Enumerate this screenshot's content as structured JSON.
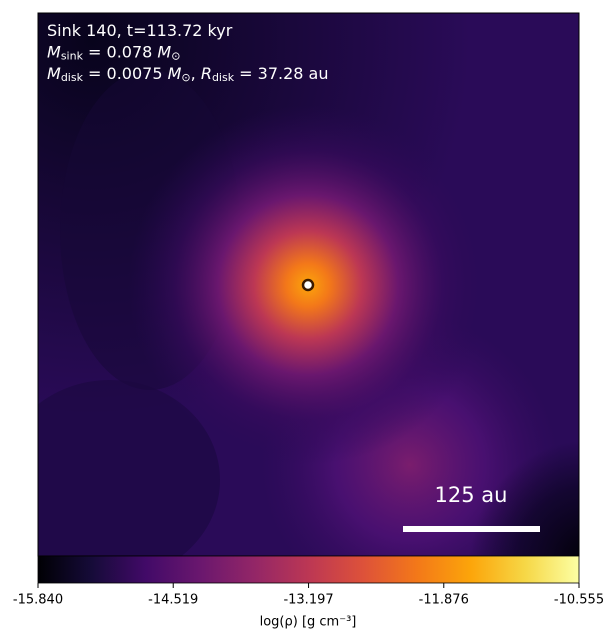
{
  "chart_data": {
    "type": "heatmap",
    "annotations": [
      [
        {
          "text": "Sink 140, t=113.72 kyr"
        }
      ],
      [
        {
          "text": "M",
          "sub": "sink"
        },
        {
          "text": " = 0.078 "
        },
        {
          "text": "M",
          "sub": "⊙"
        }
      ],
      [
        {
          "text": "M",
          "sub": "disk"
        },
        {
          "text": " = 0.0075 "
        },
        {
          "text": "M",
          "sub": "⊙"
        },
        {
          "text": ", "
        },
        {
          "text": "R",
          "sub": "disk"
        },
        {
          "text": " = 37.28 au"
        }
      ]
    ],
    "scale_bar_label": "125 au",
    "colorbar_label": "log(ρ) [g cm⁻³]",
    "clim": [
      -15.84,
      -10.555
    ],
    "cticks": [
      {
        "value": -15.84,
        "label": "-15.840"
      },
      {
        "value": -14.519,
        "label": "-14.519"
      },
      {
        "value": -13.197,
        "label": "-13.197"
      },
      {
        "value": -11.876,
        "label": "-11.876"
      },
      {
        "value": -10.555,
        "label": "-10.555"
      }
    ],
    "colormap": [
      "#000004",
      "#160b39",
      "#420a68",
      "#6a176e",
      "#932667",
      "#bc3754",
      "#dd513a",
      "#f37819",
      "#fca50a",
      "#f6d746",
      "#fcffa4"
    ]
  }
}
